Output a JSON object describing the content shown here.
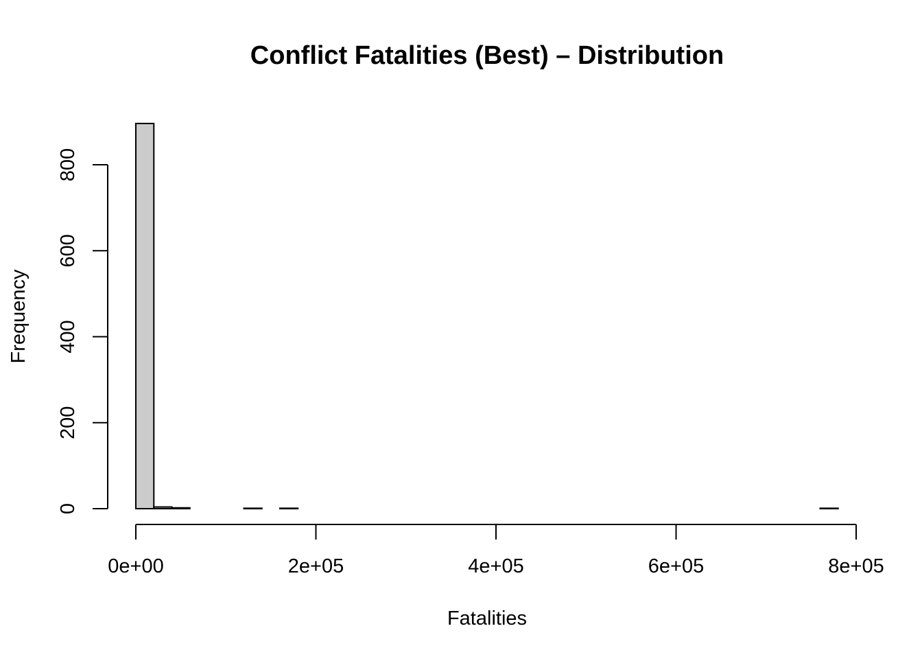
{
  "colors": {
    "bar_fill": "#cccccc",
    "bar_stroke": "#000000",
    "axis": "#000000",
    "background": "#ffffff"
  },
  "chart_data": {
    "type": "bar",
    "title": "Conflict Fatalities (Best) – Distribution",
    "xlabel": "Fatalities",
    "ylabel": "Frequency",
    "bin_width": 20000,
    "bin_starts": [
      0,
      20000,
      40000,
      60000,
      80000,
      100000,
      120000,
      140000,
      160000,
      180000,
      200000,
      220000,
      240000,
      260000,
      280000,
      300000,
      320000,
      340000,
      360000,
      380000,
      400000,
      420000,
      440000,
      460000,
      480000,
      500000,
      520000,
      540000,
      560000,
      580000,
      600000,
      620000,
      640000,
      660000,
      680000,
      700000,
      720000,
      740000,
      760000
    ],
    "values": [
      896,
      4,
      2,
      0,
      0,
      0,
      1,
      0,
      1,
      0,
      0,
      0,
      0,
      0,
      0,
      0,
      0,
      0,
      0,
      0,
      0,
      0,
      0,
      0,
      0,
      0,
      0,
      0,
      0,
      0,
      0,
      0,
      0,
      0,
      0,
      0,
      0,
      0,
      1
    ],
    "xlim": [
      0,
      800000
    ],
    "ylim": [
      0,
      800
    ],
    "x_ticks": [
      0,
      200000,
      400000,
      600000,
      800000
    ],
    "x_tick_labels": [
      "0e+00",
      "2e+05",
      "4e+05",
      "6e+05",
      "8e+05"
    ],
    "y_ticks": [
      0,
      200,
      400,
      600,
      800
    ],
    "y_tick_labels": [
      "0",
      "200",
      "400",
      "600",
      "800"
    ],
    "grid": false,
    "legend": "none"
  }
}
